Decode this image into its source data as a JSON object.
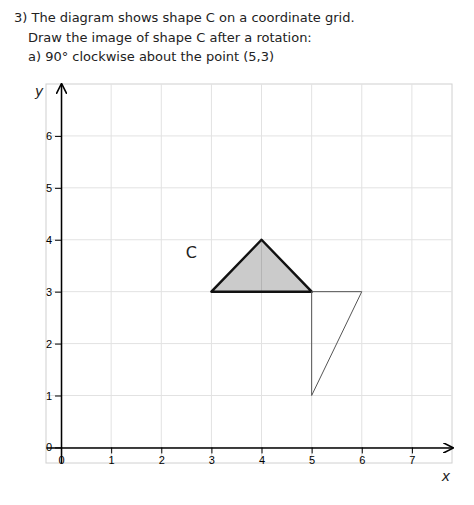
{
  "chart_data": {
    "type": "polygon",
    "title": "3) The diagram shows shape C on a coordinate grid.",
    "subtitle": [
      "Draw the image of shape C after a rotation:",
      "a) 90° clockwise about the point (5,3)"
    ],
    "x_label": "x",
    "y_label": "y",
    "xlim": [
      -0.3,
      7.8
    ],
    "ylim": [
      -0.3,
      7.0
    ],
    "xticks": [
      0,
      1,
      2,
      3,
      4,
      5,
      6,
      7
    ],
    "yticks": [
      0,
      1,
      2,
      3,
      4,
      5,
      6
    ],
    "grid": true,
    "series": [
      {
        "type": "area",
        "color": "#111111",
        "x": [
          3,
          5,
          4
        ],
        "y": [
          3,
          3,
          4
        ]
      },
      {
        "type": "line",
        "color": "#555555",
        "x": [
          5,
          5,
          6
        ],
        "y": [
          3,
          1,
          3
        ]
      }
    ],
    "annotations": [
      {
        "text": "C",
        "x": 2.6,
        "y": 3.75
      }
    ]
  }
}
